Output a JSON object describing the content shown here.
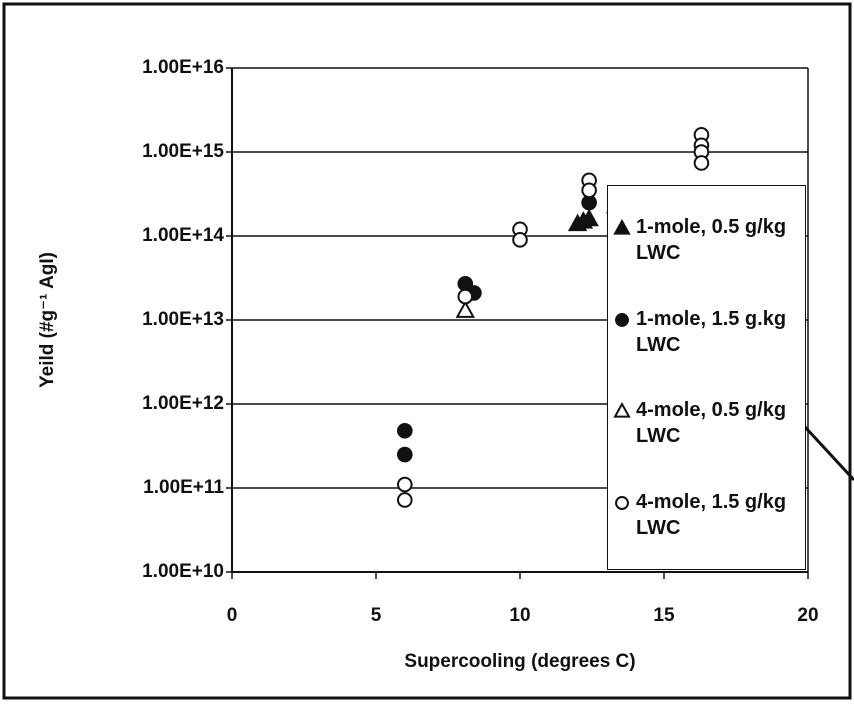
{
  "chart_data": {
    "type": "scatter",
    "xlabel": "Supercooling (degrees C)",
    "ylabel": "Yeild (#g⁻¹ AgI)",
    "xlim": [
      0,
      20
    ],
    "xticks": [
      0,
      5,
      10,
      15,
      20
    ],
    "ylim": [
      10000000000.0,
      1e+16
    ],
    "ylog": true,
    "yticks": [
      {
        "value": 10000000000.0,
        "label": "1.00E+10"
      },
      {
        "value": 100000000000.0,
        "label": "1.00E+11"
      },
      {
        "value": 1000000000000.0,
        "label": "1.00E+12"
      },
      {
        "value": 10000000000000.0,
        "label": "1.00E+13"
      },
      {
        "value": 100000000000000.0,
        "label": "1.00E+14"
      },
      {
        "value": 1000000000000000.0,
        "label": "1.00E+15"
      },
      {
        "value": 1e+16,
        "label": "1.00E+16"
      }
    ],
    "grid": true,
    "legend": "right",
    "series": [
      {
        "name": "1-mole, 0.5 g/kg LWC",
        "color": "#111111",
        "marker": "triangle",
        "filled": true,
        "x": [
          12.0,
          12.2,
          12.4
        ],
        "values": [
          140000000000000.0,
          150000000000000.0,
          160000000000000.0
        ]
      },
      {
        "name": "1-mole, 1.5 g.kg LWC",
        "color": "#111111",
        "marker": "circle",
        "filled": true,
        "x": [
          6,
          6,
          8.1,
          8.4,
          12.4
        ],
        "values": [
          480000000000.0,
          250000000000.0,
          27000000000000.0,
          21000000000000.0,
          250000000000000.0
        ]
      },
      {
        "name": "4-mole, 0.5 g/kg LWC",
        "color": "#111111",
        "marker": "triangle",
        "filled": false,
        "x": [
          8.1
        ],
        "values": [
          13000000000000.0
        ]
      },
      {
        "name": "4-mole, 1.5 g/kg LWC",
        "color": "#111111",
        "marker": "circle",
        "filled": false,
        "x": [
          6,
          6,
          8.1,
          10,
          10,
          12.4,
          12.4,
          16.3,
          16.3,
          16.3,
          16.3
        ],
        "values": [
          110000000000.0,
          72000000000.0,
          19000000000000.0,
          120000000000000.0,
          90000000000000.0,
          460000000000000.0,
          350000000000000.0,
          1600000000000000.0,
          1200000000000000.0,
          1000000000000000.0,
          740000000000000.0
        ]
      }
    ]
  }
}
